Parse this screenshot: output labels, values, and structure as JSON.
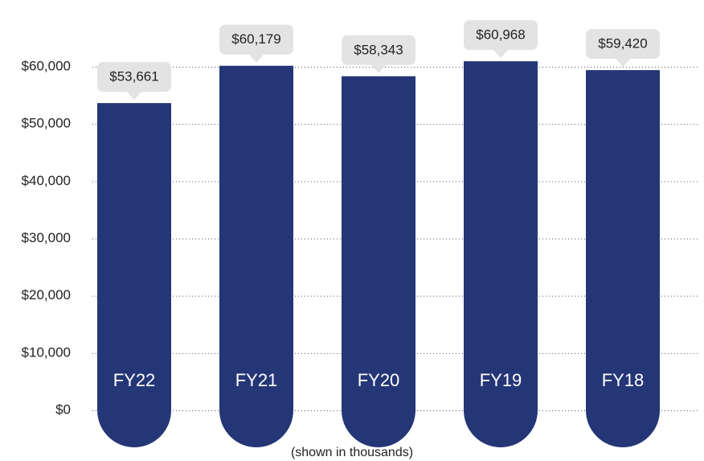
{
  "chart_data": {
    "type": "bar",
    "categories": [
      "FY22",
      "FY21",
      "FY20",
      "FY19",
      "FY18"
    ],
    "values": [
      53661,
      60179,
      58343,
      60968,
      59420
    ],
    "value_labels": [
      "$53,661",
      "$60,179",
      "$58,343",
      "$60,968",
      "$59,420"
    ],
    "color": "#253677",
    "ylim": [
      0,
      60000
    ],
    "yticks": [
      {
        "value": 0,
        "label": "$0"
      },
      {
        "value": 10000,
        "label": "$10,000"
      },
      {
        "value": 20000,
        "label": "$20,000"
      },
      {
        "value": 30000,
        "label": "$30,000"
      },
      {
        "value": 40000,
        "label": "$40,000"
      },
      {
        "value": 50000,
        "label": "$50,000"
      },
      {
        "value": 60000,
        "label": "$60,000"
      }
    ],
    "grid": true,
    "note": "(shown in thousands)"
  }
}
